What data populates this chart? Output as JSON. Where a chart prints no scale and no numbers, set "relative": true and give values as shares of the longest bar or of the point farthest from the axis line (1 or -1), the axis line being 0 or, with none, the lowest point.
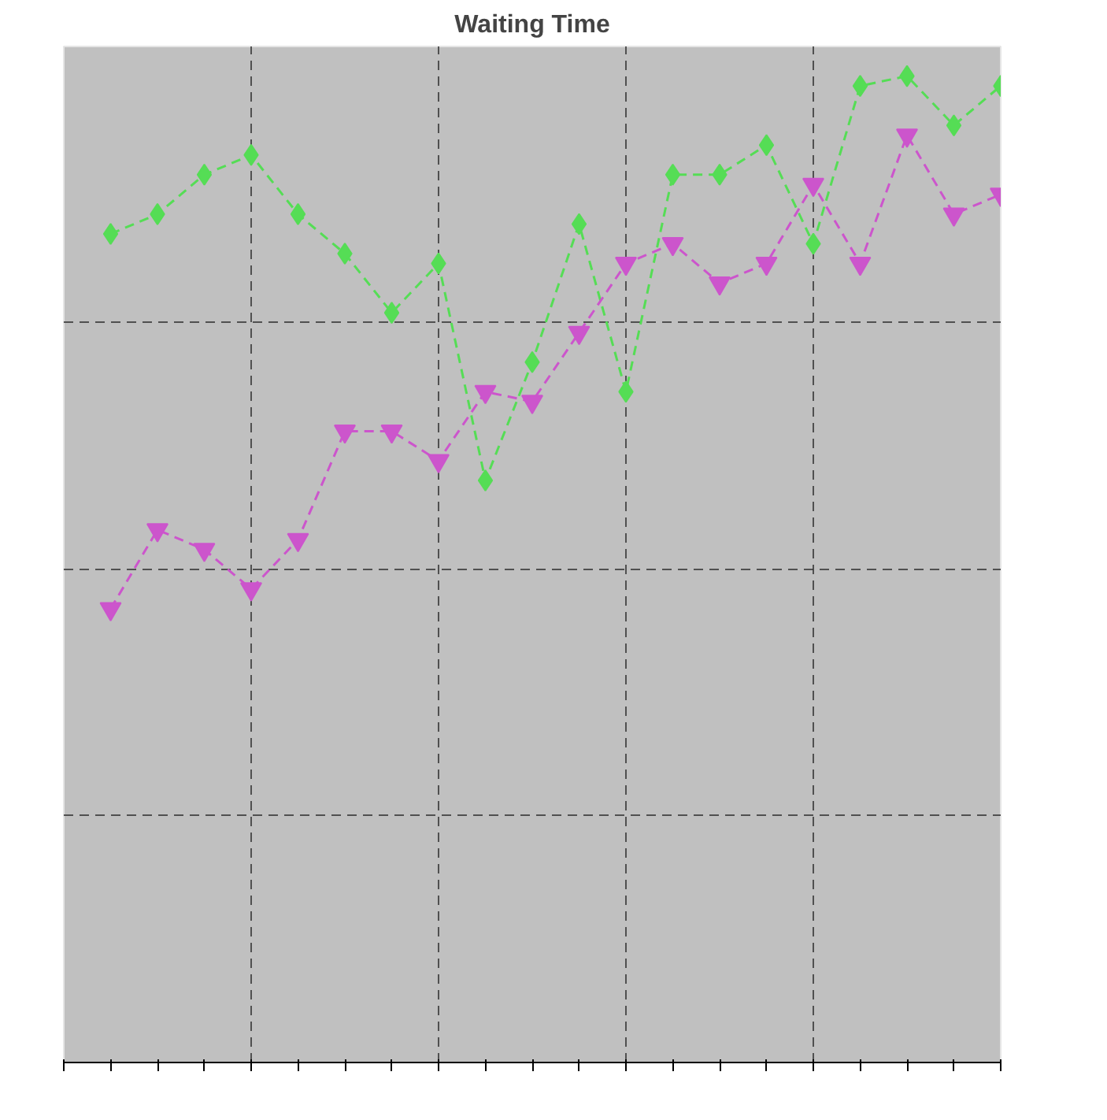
{
  "chart_data": {
    "type": "line",
    "title": "Waiting Time",
    "relative": true,
    "grid": true,
    "line_style": "dashed",
    "categories": [
      null,
      null,
      null,
      null,
      null,
      null,
      null,
      null,
      null,
      null,
      null,
      null,
      null,
      null,
      null,
      null,
      null,
      null,
      null,
      null,
      null
    ],
    "series": [
      {
        "color": "#55dd55",
        "marker": "diamond",
        "values": [
          null,
          0.84,
          0.86,
          0.9,
          0.92,
          0.86,
          0.82,
          0.76,
          0.81,
          0.59,
          0.71,
          0.85,
          0.68,
          0.9,
          0.9,
          0.93,
          0.83,
          0.99,
          1,
          0.95,
          0.99
        ]
      },
      {
        "color": "#cc55cc",
        "marker": "triangle",
        "values": [
          null,
          0.46,
          0.54,
          0.52,
          0.48,
          0.53,
          0.64,
          0.64,
          0.61,
          0.68,
          0.67,
          0.74,
          0.81,
          0.83,
          0.79,
          0.81,
          0.89,
          0.81,
          0.94,
          0.86,
          0.88
        ]
      }
    ]
  }
}
